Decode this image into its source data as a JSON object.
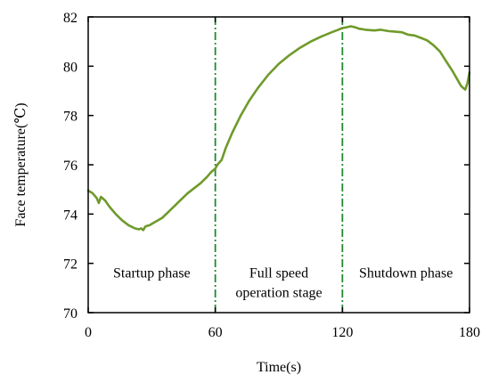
{
  "chart_data": {
    "type": "line",
    "title": "",
    "xlabel": "Time(s)",
    "ylabel": "Face temperature(℃)",
    "xlim": [
      0,
      180
    ],
    "ylim": [
      70,
      82
    ],
    "xticks": [
      0,
      60,
      120,
      180
    ],
    "yticks": [
      70,
      72,
      74,
      76,
      78,
      80,
      82
    ],
    "grid": false,
    "series": [
      {
        "color": "#6f9a2a",
        "x": [
          0,
          2,
          4,
          5,
          6,
          8,
          10,
          13,
          16,
          19,
          22,
          24,
          25,
          26,
          27,
          29,
          31,
          33,
          35,
          38,
          41,
          44,
          47,
          50,
          53,
          56,
          58,
          60,
          61,
          63,
          65,
          68,
          72,
          76,
          80,
          85,
          90,
          95,
          100,
          105,
          110,
          115,
          118,
          120,
          122,
          124,
          126,
          128,
          131,
          135,
          138,
          142,
          145,
          148,
          151,
          154,
          157,
          160,
          163,
          166,
          169,
          172,
          175,
          176,
          177,
          178,
          179,
          180
        ],
        "y": [
          74.95,
          74.85,
          74.65,
          74.45,
          74.7,
          74.55,
          74.3,
          74.0,
          73.75,
          73.55,
          73.42,
          73.38,
          73.42,
          73.35,
          73.5,
          73.55,
          73.65,
          73.75,
          73.85,
          74.1,
          74.35,
          74.6,
          74.85,
          75.05,
          75.25,
          75.5,
          75.7,
          75.85,
          76.0,
          76.2,
          76.7,
          77.3,
          78.0,
          78.6,
          79.1,
          79.65,
          80.1,
          80.45,
          80.75,
          81.0,
          81.2,
          81.38,
          81.48,
          81.55,
          81.58,
          81.62,
          81.58,
          81.52,
          81.48,
          81.45,
          81.48,
          81.42,
          81.4,
          81.38,
          81.28,
          81.25,
          81.15,
          81.05,
          80.85,
          80.6,
          80.2,
          79.8,
          79.35,
          79.2,
          79.12,
          79.05,
          79.3,
          79.75
        ]
      }
    ],
    "phase_lines_x": [
      60,
      120
    ],
    "phase_labels": [
      {
        "lines": [
          "Startup phase"
        ],
        "x_center": 30,
        "y": 71.6
      },
      {
        "lines": [
          "Full speed",
          "operation stage"
        ],
        "x_center": 90,
        "y": 71.6
      },
      {
        "lines": [
          "Shutdown phase"
        ],
        "x_center": 150,
        "y": 71.6
      }
    ],
    "line_color": "#6f9a2a",
    "divider_color": "#1f8a2e"
  }
}
